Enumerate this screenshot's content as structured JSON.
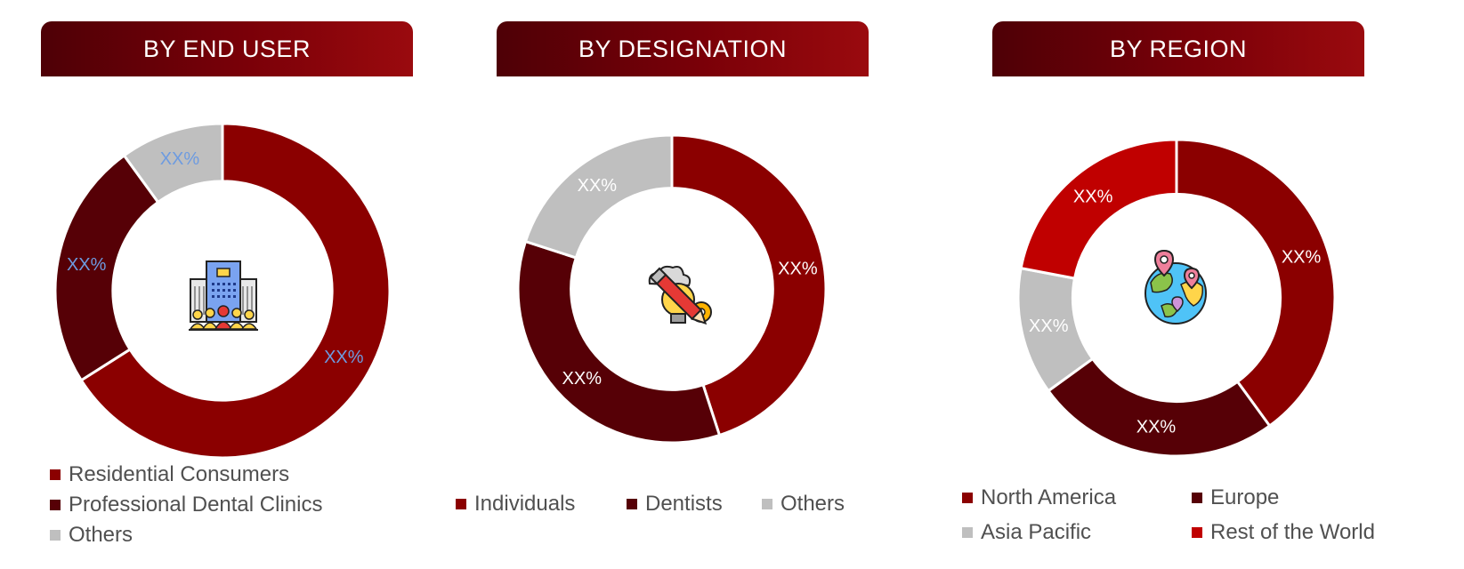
{
  "colors": {
    "dark_red": "#8b0000",
    "maroon": "#560006",
    "grey": "#bfbfbf",
    "bright_red": "#c00000",
    "blue_label": "#6d9be0",
    "white_label": "#ffffff"
  },
  "chart_data": [
    {
      "type": "pie",
      "title": "BY END USER",
      "center_icon": "building-with-people-icon",
      "categories": [
        "Residential Consumers",
        "Professional Dental Clinics",
        "Others"
      ],
      "values": [
        66,
        24,
        10
      ],
      "labels": [
        "XX%",
        "XX%",
        "XX%"
      ],
      "colors": [
        "#8b0000",
        "#560006",
        "#bfbfbf"
      ],
      "label_color": "#6d9be0",
      "donut": true,
      "legend": "bottom"
    },
    {
      "type": "pie",
      "title": "BY DESIGNATION",
      "center_icon": "idea-bulb-pencil-gear-icon",
      "categories": [
        "Individuals",
        "Dentists",
        "Others"
      ],
      "values": [
        45,
        35,
        20
      ],
      "labels": [
        "XX%",
        "XX%",
        "XX%"
      ],
      "colors": [
        "#8b0000",
        "#560006",
        "#bfbfbf"
      ],
      "label_color": "#ffffff",
      "donut": true,
      "legend": "bottom"
    },
    {
      "type": "pie",
      "title": "BY REGION",
      "center_icon": "globe-map-pins-icon",
      "categories": [
        "North America",
        "Europe",
        "Asia Pacific",
        "Rest of the World"
      ],
      "values": [
        40,
        25,
        13,
        22
      ],
      "labels": [
        "XX%",
        "XX%",
        "XX%",
        "XX%"
      ],
      "colors": [
        "#8b0000",
        "#560006",
        "#bfbfbf",
        "#c00000"
      ],
      "label_color": "#ffffff",
      "donut": true,
      "legend": "bottom"
    }
  ]
}
